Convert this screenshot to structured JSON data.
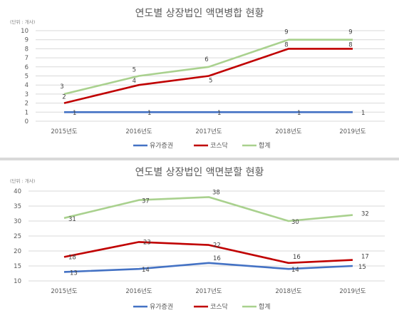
{
  "chart_data": [
    {
      "type": "line",
      "title": "연도별 상장법인 액면병합 현황",
      "unit_label": "(단위 : 개사)",
      "categories": [
        "2015년도",
        "2016년도",
        "2017년도",
        "2018년도",
        "2019년도"
      ],
      "ylim": [
        0,
        10
      ],
      "yticks": [
        0,
        1,
        2,
        3,
        4,
        5,
        6,
        7,
        8,
        9,
        10
      ],
      "grid": true,
      "legend_position": "bottom",
      "series": [
        {
          "name": "유가증권",
          "color": "#4472c4",
          "values": [
            1,
            1,
            1,
            1,
            1
          ]
        },
        {
          "name": "코스닥",
          "color": "#c00000",
          "values": [
            2,
            4,
            5,
            8,
            8
          ]
        },
        {
          "name": "합계",
          "color": "#a9d18e",
          "values": [
            3,
            5,
            6,
            9,
            9
          ]
        }
      ]
    },
    {
      "type": "line",
      "title": "연도별 상장법인 액면분할 현황",
      "unit_label": "(단위 : 개사)",
      "categories": [
        "2015년도",
        "2016년도",
        "2017년도",
        "2018년도",
        "2019년도"
      ],
      "ylim": [
        10,
        40
      ],
      "yticks": [
        10,
        15,
        20,
        25,
        30,
        35,
        40
      ],
      "grid": true,
      "legend_position": "bottom",
      "series": [
        {
          "name": "유가증권",
          "color": "#4472c4",
          "values": [
            13,
            14,
            16,
            14,
            15
          ]
        },
        {
          "name": "코스닥",
          "color": "#c00000",
          "values": [
            18,
            23,
            22,
            16,
            17
          ]
        },
        {
          "name": "합계",
          "color": "#a9d18e",
          "values": [
            31,
            37,
            38,
            30,
            32
          ]
        }
      ]
    }
  ]
}
